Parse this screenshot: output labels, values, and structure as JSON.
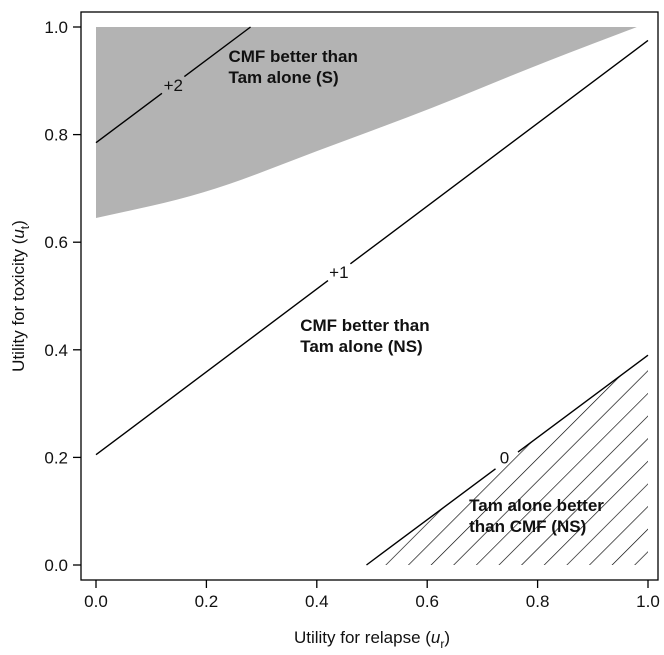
{
  "chart_data": {
    "type": "contour",
    "xlabel_main": "Utility for relapse (",
    "xlabel_var": "u",
    "xlabel_sub": "r",
    "xlabel_close": ")",
    "ylabel_main": "Utility for toxicity (",
    "ylabel_var": "u",
    "ylabel_sub": "t",
    "ylabel_close": ")",
    "xlim": [
      0.0,
      1.0
    ],
    "ylim": [
      0.0,
      1.0
    ],
    "x_ticks": [
      "0.0",
      "0.2",
      "0.4",
      "0.6",
      "0.8",
      "1.0"
    ],
    "y_ticks": [
      "0.0",
      "0.2",
      "0.4",
      "0.6",
      "0.8",
      "1.0"
    ],
    "shaded_region": {
      "label_lines": [
        "CMF better than",
        "Tam alone (S)"
      ],
      "fill": "#b3b3b3",
      "boundary": [
        [
          0.0,
          1.0
        ],
        [
          0.98,
          1.0
        ],
        [
          0.8,
          0.93
        ],
        [
          0.6,
          0.845
        ],
        [
          0.4,
          0.77
        ],
        [
          0.2,
          0.69
        ],
        [
          0.0,
          0.645
        ]
      ]
    },
    "hatched_region": {
      "label_lines": [
        "Tam alone better",
        "than CMF (NS)"
      ],
      "vertices": [
        [
          0.49,
          0.0
        ],
        [
          1.0,
          0.0
        ],
        [
          1.0,
          0.39
        ]
      ]
    },
    "middle_region_label_lines": [
      "CMF better than",
      "Tam alone (NS)"
    ],
    "contours": [
      {
        "label": "+2",
        "start": [
          0.0,
          0.785
        ],
        "end": [
          0.28,
          1.0
        ],
        "label_at": [
          0.14,
          0.892
        ]
      },
      {
        "label": "+1",
        "start": [
          0.0,
          0.205
        ],
        "end": [
          1.0,
          0.975
        ],
        "label_at": [
          0.44,
          0.545
        ]
      },
      {
        "label": "0",
        "start": [
          0.49,
          0.0
        ],
        "end": [
          1.0,
          0.39
        ],
        "label_at": [
          0.74,
          0.2
        ]
      }
    ],
    "grid": false
  }
}
